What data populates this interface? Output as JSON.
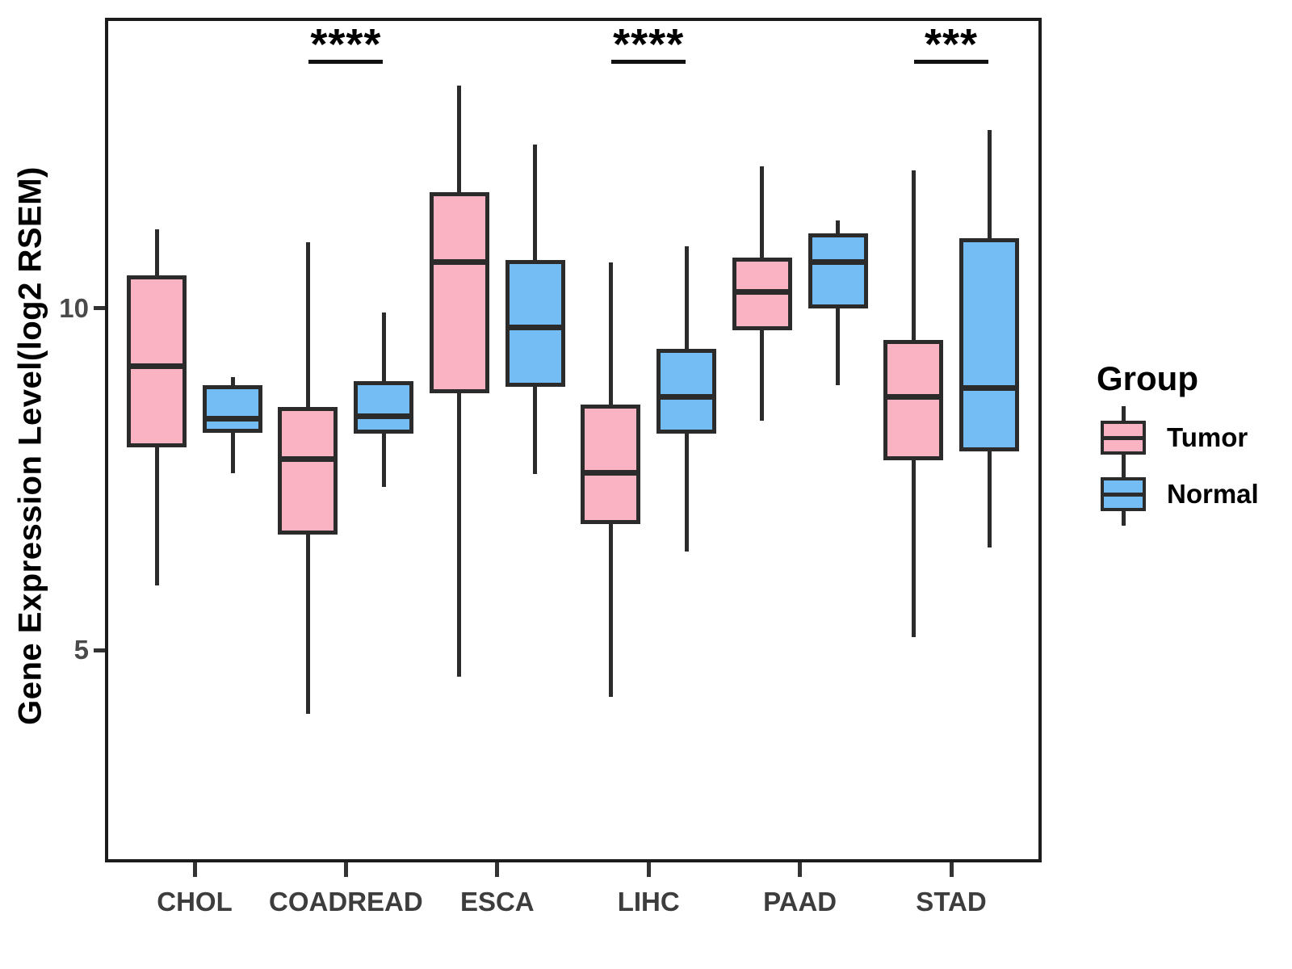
{
  "chart_data": {
    "type": "boxplot",
    "title": "",
    "xlabel": "",
    "ylabel": "Gene Expression Level(log2 RSEM)",
    "yticks": [
      "10",
      "5"
    ],
    "ytick_values": [
      10,
      5
    ],
    "ylim": [
      1.9,
      14.3
    ],
    "grid": false,
    "legend_position": "right",
    "categories": [
      "CHOL",
      "COADREAD",
      "ESCA",
      "LIHC",
      "PAAD",
      "STAD"
    ],
    "legend": {
      "title": "Group",
      "entries": [
        {
          "label": "Tumor",
          "color": "#fab3c3"
        },
        {
          "label": "Normal",
          "color": "#74bdf4"
        }
      ]
    },
    "significance": [
      {
        "category": "COADREAD",
        "label": "****"
      },
      {
        "category": "LIHC",
        "label": "****"
      },
      {
        "category": "STAD",
        "label": "***"
      }
    ],
    "series": [
      {
        "name": "Tumor",
        "color": "#fab3c3",
        "boxes": [
          {
            "category": "CHOL",
            "whisker_low": 5.94,
            "q1": 7.97,
            "median": 9.15,
            "q3": 10.48,
            "whisker_high": 11.15
          },
          {
            "category": "COADREAD",
            "whisker_low": 4.07,
            "q1": 6.69,
            "median": 7.79,
            "q3": 8.55,
            "whisker_high": 10.97
          },
          {
            "category": "ESCA",
            "whisker_low": 4.61,
            "q1": 8.76,
            "median": 10.67,
            "q3": 11.7,
            "whisker_high": 13.26
          },
          {
            "category": "LIHC",
            "whisker_low": 4.32,
            "q1": 6.84,
            "median": 7.59,
            "q3": 8.59,
            "whisker_high": 10.67
          },
          {
            "category": "PAAD",
            "whisker_low": 8.36,
            "q1": 9.68,
            "median": 10.24,
            "q3": 10.74,
            "whisker_high": 12.07
          },
          {
            "category": "STAD",
            "whisker_low": 5.19,
            "q1": 7.77,
            "median": 8.7,
            "q3": 9.53,
            "whisker_high": 12.02
          }
        ]
      },
      {
        "name": "Normal",
        "color": "#74bdf4",
        "boxes": [
          {
            "category": "CHOL",
            "whisker_low": 7.59,
            "q1": 8.18,
            "median": 8.38,
            "q3": 8.87,
            "whisker_high": 8.99
          },
          {
            "category": "COADREAD",
            "whisker_low": 7.39,
            "q1": 8.17,
            "median": 8.42,
            "q3": 8.93,
            "whisker_high": 9.94
          },
          {
            "category": "ESCA",
            "whisker_low": 7.57,
            "q1": 8.85,
            "median": 9.72,
            "q3": 10.71,
            "whisker_high": 12.39
          },
          {
            "category": "LIHC",
            "whisker_low": 6.44,
            "q1": 8.17,
            "median": 8.7,
            "q3": 9.41,
            "whisker_high": 10.91
          },
          {
            "category": "PAAD",
            "whisker_low": 8.88,
            "q1": 10.0,
            "median": 10.67,
            "q3": 11.09,
            "whisker_high": 11.28
          },
          {
            "category": "STAD",
            "whisker_low": 6.5,
            "q1": 7.91,
            "median": 8.83,
            "q3": 11.03,
            "whisker_high": 12.61
          }
        ]
      }
    ]
  },
  "colors": {
    "box_stroke": "#2b2b2b",
    "panel_border": "#1c1c1c",
    "tick_text": "#4a4a4a",
    "axis_title_text": "#000000"
  }
}
